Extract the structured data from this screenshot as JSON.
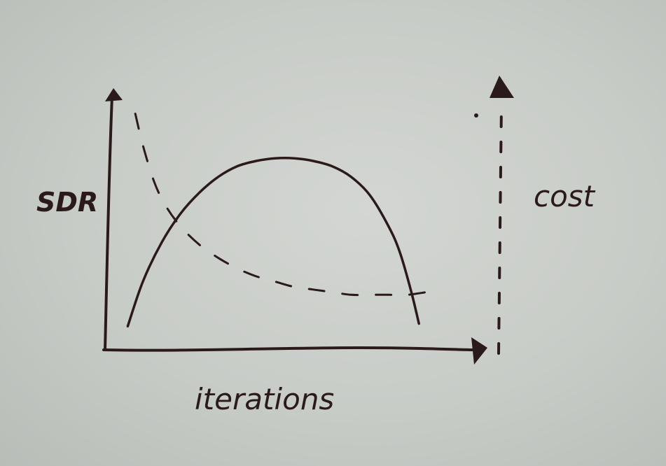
{
  "chart_data": {
    "type": "line",
    "xlabel": "iterations",
    "ylabel": "SDR",
    "y2label": "cost",
    "xlim": [
      0,
      100
    ],
    "ylim": [
      0,
      10
    ],
    "y2lim": [
      0,
      10
    ],
    "grid": false,
    "series": [
      {
        "axis": "left",
        "style": "solid",
        "x": [
          6,
          10,
          15,
          20,
          25,
          30,
          35,
          40,
          45,
          50,
          55,
          60,
          65,
          70,
          75,
          78,
          81,
          83
        ],
        "y": [
          0.9,
          2.6,
          4.1,
          5.2,
          6.0,
          6.6,
          7.0,
          7.2,
          7.3,
          7.3,
          7.2,
          7.0,
          6.6,
          5.9,
          4.7,
          3.7,
          2.2,
          1.0
        ]
      },
      {
        "axis": "right",
        "style": "dashed",
        "x": [
          8,
          10,
          13,
          16,
          20,
          25,
          30,
          35,
          40,
          45,
          50,
          55,
          60,
          65,
          70,
          75,
          80,
          85
        ],
        "y": [
          9.0,
          7.8,
          6.4,
          5.5,
          4.7,
          4.0,
          3.5,
          3.1,
          2.8,
          2.6,
          2.4,
          2.3,
          2.2,
          2.1,
          2.1,
          2.1,
          2.1,
          2.2
        ]
      }
    ]
  }
}
